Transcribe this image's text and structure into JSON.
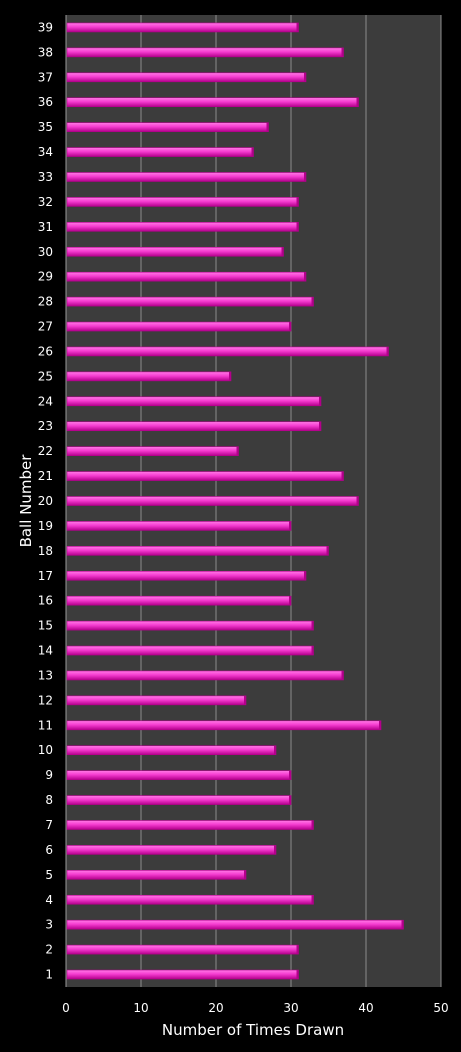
{
  "chart_data": {
    "type": "bar",
    "orientation": "horizontal",
    "title": "",
    "xlabel": "Number of Times Drawn",
    "ylabel": "Ball Number",
    "xlim": [
      0,
      50
    ],
    "xticks": [
      0,
      10,
      20,
      30,
      40,
      50
    ],
    "grid": true,
    "legend": "none",
    "categories": [
      "1",
      "2",
      "3",
      "4",
      "5",
      "6",
      "7",
      "8",
      "9",
      "10",
      "11",
      "12",
      "13",
      "14",
      "15",
      "16",
      "17",
      "18",
      "19",
      "20",
      "21",
      "22",
      "23",
      "24",
      "25",
      "26",
      "27",
      "28",
      "29",
      "30",
      "31",
      "32",
      "33",
      "34",
      "35",
      "36",
      "37",
      "38",
      "39"
    ],
    "series": [
      {
        "values": [
          31,
          31,
          45,
          33,
          24,
          28,
          33,
          30,
          30,
          28,
          42,
          24,
          37,
          33,
          33,
          30,
          32,
          35,
          30,
          39,
          37,
          23,
          34,
          34,
          22,
          43,
          30,
          33,
          32,
          29,
          31,
          31,
          32,
          25,
          27,
          39,
          32,
          37,
          31
        ]
      }
    ]
  },
  "colors": {
    "background": "#000000",
    "plot_area": "#3c3c3c",
    "gridline": "#8c8c8c",
    "bar_dark": "#b4008c",
    "bar_light": "#ff7ae6",
    "text": "#ffffff"
  }
}
